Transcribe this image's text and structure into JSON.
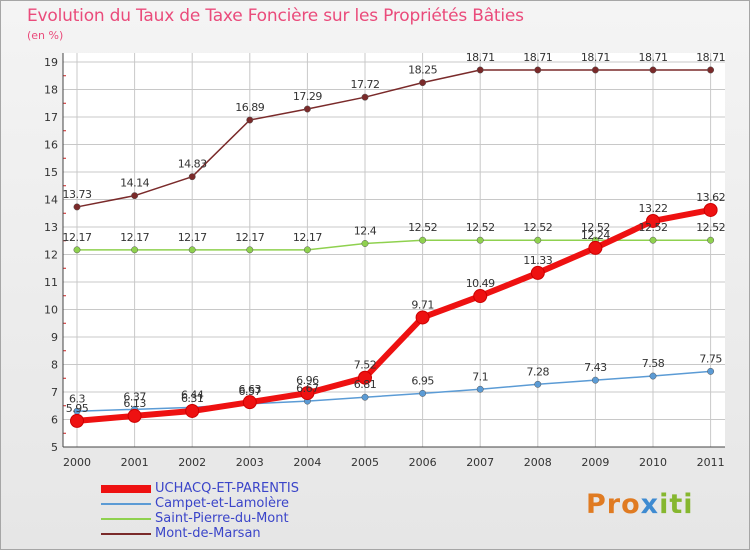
{
  "header": {
    "title": "Evolution du Taux de Taxe Foncière sur les Propriétés Bâties",
    "unit": "(en %)"
  },
  "brand": {
    "part1": "Pro",
    "part2": "x",
    "part3": "iti"
  },
  "colors": {
    "title": "#ea4b7b",
    "legend_text": "#3b45c9",
    "grid": "#c8c8c8",
    "axis_tick_red": "#cc1e1e"
  },
  "chart_data": {
    "type": "line",
    "title": "Evolution du Taux de Taxe Foncière sur les Propriétés Bâties",
    "ylabel": "(en %)",
    "xlabel": "",
    "x": [
      "2000",
      "2001",
      "2002",
      "2003",
      "2004",
      "2005",
      "2006",
      "2007",
      "2008",
      "2009",
      "2010",
      "2011"
    ],
    "yticks": [
      "5",
      "6",
      "7",
      "8",
      "9",
      "10",
      "11",
      "12",
      "13",
      "14",
      "15",
      "16",
      "17",
      "18",
      "19"
    ],
    "ylim": [
      5,
      19
    ],
    "grid": true,
    "legend_position": "bottom-left",
    "series": [
      {
        "name": "UCHACQ-ET-PARENTIS",
        "color": "#ee1111",
        "values": [
          5.95,
          6.13,
          6.31,
          6.63,
          6.96,
          7.52,
          9.71,
          10.49,
          11.33,
          12.24,
          13.22,
          13.62
        ],
        "labels": [
          "5.95",
          "6.13",
          "6.31",
          "6.63",
          "6.96",
          "7.52",
          "9.71",
          "10.49",
          "11.33",
          "12.24",
          "13.22",
          "13.62"
        ]
      },
      {
        "name": "Campet-et-Lamolère",
        "color": "#5b9bd5",
        "values": [
          6.3,
          6.37,
          6.44,
          6.57,
          6.67,
          6.81,
          6.95,
          7.1,
          7.28,
          7.43,
          7.58,
          7.75
        ],
        "labels": [
          "6.3",
          "6.37",
          "6.44",
          "6.57",
          "6.67",
          "6.81",
          "6.95",
          "7.1",
          "7.28",
          "7.43",
          "7.58",
          "7.75"
        ]
      },
      {
        "name": "Saint-Pierre-du-Mont",
        "color": "#8fd14f",
        "values": [
          12.17,
          12.17,
          12.17,
          12.17,
          12.17,
          12.4,
          12.52,
          12.52,
          12.52,
          12.52,
          12.52,
          12.52
        ],
        "labels": [
          "12.17",
          "12.17",
          "12.17",
          "12.17",
          "12.17",
          "12.4",
          "12.52",
          "12.52",
          "12.52",
          "12.52",
          "12.52",
          "12.52"
        ]
      },
      {
        "name": "Mont-de-Marsan",
        "color": "#7a2a2a",
        "values": [
          13.73,
          14.14,
          14.83,
          16.89,
          17.29,
          17.72,
          18.25,
          18.71,
          18.71,
          18.71,
          18.71,
          18.71
        ],
        "labels": [
          "13.73",
          "14.14",
          "14.83",
          "16.89",
          "17.29",
          "17.72",
          "18.25",
          "18.71",
          "18.71",
          "18.71",
          "18.71",
          "18.71"
        ]
      }
    ]
  }
}
